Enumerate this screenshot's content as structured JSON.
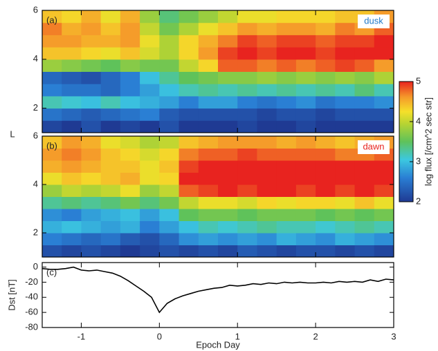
{
  "chart_data": [
    {
      "type": "heatmap",
      "panel_label": "(a)",
      "region": "dusk",
      "region_color": "#1f78c8",
      "ylabel": "L",
      "xbins": [
        -1.5,
        -1.25,
        -1,
        -0.75,
        -0.5,
        -0.25,
        0,
        0.25,
        0.5,
        0.75,
        1,
        1.25,
        1.5,
        1.75,
        2,
        2.25,
        2.5,
        2.75,
        3
      ],
      "ybins": [
        1,
        1.5,
        2,
        2.5,
        3,
        3.5,
        4,
        4.5,
        5,
        5.5,
        6
      ],
      "z": [
        [
          2.1,
          2.0,
          2.2,
          2.0,
          2.1,
          2.0,
          2.2,
          2.0,
          2.0,
          2.0,
          2.1,
          2.0,
          2.0,
          2.1,
          2.0,
          2.0,
          2.0,
          2.0
        ],
        [
          2.5,
          2.4,
          2.3,
          2.4,
          2.5,
          2.6,
          2.3,
          2.2,
          2.2,
          2.2,
          2.2,
          2.1,
          2.2,
          2.2,
          2.1,
          2.2,
          2.2,
          2.2
        ],
        [
          3.2,
          3.1,
          3.0,
          3.2,
          3.0,
          2.9,
          2.8,
          2.6,
          2.8,
          2.8,
          2.6,
          2.5,
          2.6,
          2.7,
          2.5,
          2.6,
          2.6,
          2.7
        ],
        [
          2.6,
          2.5,
          2.5,
          2.4,
          2.6,
          2.8,
          3.0,
          3.2,
          3.3,
          3.2,
          3.3,
          3.2,
          3.3,
          3.2,
          3.3,
          3.2,
          3.4,
          3.2
        ],
        [
          2.4,
          2.3,
          2.2,
          2.4,
          2.6,
          3.0,
          3.3,
          3.5,
          3.6,
          3.7,
          3.7,
          3.8,
          3.7,
          3.8,
          3.7,
          3.8,
          3.7,
          3.9
        ],
        [
          3.8,
          3.7,
          3.6,
          3.5,
          3.7,
          3.6,
          3.6,
          4.0,
          4.3,
          4.8,
          4.8,
          4.7,
          4.8,
          4.7,
          4.8,
          4.9,
          4.8,
          4.6
        ],
        [
          4.4,
          4.4,
          4.3,
          4.2,
          4.4,
          4.1,
          3.9,
          4.3,
          4.6,
          4.9,
          5.0,
          4.9,
          5.0,
          5.0,
          4.9,
          5.0,
          5.0,
          5.0
        ],
        [
          4.6,
          4.6,
          4.5,
          4.5,
          4.6,
          4.2,
          3.9,
          4.3,
          4.5,
          4.7,
          4.9,
          4.8,
          4.9,
          4.9,
          4.8,
          4.9,
          4.9,
          5.0
        ],
        [
          4.7,
          4.5,
          4.6,
          4.4,
          4.6,
          4.0,
          3.6,
          3.9,
          4.2,
          4.4,
          4.6,
          4.5,
          4.6,
          4.6,
          4.5,
          4.7,
          4.6,
          4.8
        ],
        [
          4.4,
          4.3,
          4.5,
          4.2,
          4.5,
          3.8,
          3.4,
          3.6,
          3.8,
          4.0,
          4.2,
          4.2,
          4.3,
          4.3,
          4.3,
          4.4,
          4.4,
          4.6
        ]
      ],
      "xlim": [
        -1.5,
        3
      ],
      "ylim": [
        1,
        6
      ],
      "yticks": [
        2,
        4,
        6
      ],
      "xticks": [
        -1,
        0,
        1,
        2,
        3
      ]
    },
    {
      "type": "heatmap",
      "panel_label": "(b)",
      "region": "dawn",
      "region_color": "#e8231f",
      "xbins": [
        -1.5,
        -1.25,
        -1,
        -0.75,
        -0.5,
        -0.25,
        0,
        0.25,
        0.5,
        0.75,
        1,
        1.25,
        1.5,
        1.75,
        2,
        2.25,
        2.5,
        2.75,
        3
      ],
      "ybins": [
        1,
        1.5,
        2,
        2.5,
        3,
        3.5,
        4,
        4.5,
        5,
        5.5,
        6
      ],
      "z": [
        [
          2.2,
          2.1,
          2.2,
          2.1,
          2.0,
          2.1,
          2.2,
          2.1,
          2.2,
          2.1,
          2.3,
          2.2,
          2.1,
          2.2,
          2.2,
          2.1,
          2.2,
          2.1
        ],
        [
          2.6,
          2.5,
          2.4,
          2.5,
          2.3,
          2.2,
          2.4,
          2.7,
          2.8,
          2.7,
          2.8,
          2.7,
          2.9,
          2.8,
          2.7,
          2.9,
          2.8,
          2.7
        ],
        [
          2.9,
          3.0,
          2.9,
          2.8,
          2.9,
          2.6,
          2.8,
          3.0,
          3.2,
          3.1,
          3.2,
          3.3,
          3.2,
          3.2,
          3.1,
          3.2,
          3.3,
          3.2
        ],
        [
          2.7,
          2.6,
          2.8,
          2.9,
          3.0,
          2.8,
          3.0,
          3.5,
          3.6,
          3.6,
          3.5,
          3.6,
          3.6,
          3.6,
          3.5,
          3.6,
          3.5,
          3.6
        ],
        [
          3.3,
          3.4,
          3.3,
          3.4,
          3.6,
          3.4,
          3.6,
          4.0,
          4.2,
          4.2,
          4.1,
          4.3,
          4.2,
          4.3,
          4.3,
          4.2,
          4.4,
          4.2
        ],
        [
          3.8,
          4.0,
          3.9,
          4.0,
          4.2,
          3.8,
          4.0,
          4.8,
          4.9,
          5.0,
          4.9,
          5.0,
          5.0,
          4.9,
          5.0,
          4.9,
          5.0,
          4.9
        ],
        [
          4.2,
          4.4,
          4.3,
          4.4,
          4.5,
          4.2,
          4.3,
          5.0,
          5.0,
          5.0,
          5.0,
          5.0,
          5.0,
          5.0,
          5.0,
          5.0,
          5.0,
          5.0
        ],
        [
          4.5,
          4.6,
          4.5,
          4.4,
          4.4,
          4.2,
          4.4,
          4.9,
          5.0,
          5.0,
          5.0,
          5.0,
          5.0,
          5.0,
          5.0,
          5.0,
          5.0,
          5.0
        ],
        [
          4.6,
          4.7,
          4.6,
          4.4,
          4.3,
          4.1,
          4.3,
          4.7,
          4.8,
          4.8,
          4.9,
          4.8,
          4.8,
          4.8,
          4.8,
          4.7,
          4.7,
          4.8
        ],
        [
          4.4,
          4.6,
          4.5,
          4.2,
          4.1,
          3.9,
          4.0,
          4.4,
          4.5,
          4.6,
          4.6,
          4.6,
          4.5,
          4.6,
          4.5,
          4.4,
          4.5,
          4.6
        ]
      ],
      "xlim": [
        -1.5,
        3
      ],
      "ylim": [
        1,
        6
      ],
      "yticks": [
        2,
        4,
        6
      ],
      "xticks": [
        -1,
        0,
        1,
        2,
        3
      ]
    },
    {
      "type": "line",
      "panel_label": "(c)",
      "ylabel": "Dst [nT]",
      "xlabel": "Epoch Day",
      "color": "#000000",
      "x": [
        -1.5,
        -1.4,
        -1.3,
        -1.2,
        -1.1,
        -1.0,
        -0.9,
        -0.8,
        -0.7,
        -0.6,
        -0.5,
        -0.4,
        -0.3,
        -0.2,
        -0.1,
        0,
        0.1,
        0.2,
        0.3,
        0.4,
        0.5,
        0.6,
        0.7,
        0.8,
        0.9,
        1.0,
        1.1,
        1.2,
        1.3,
        1.4,
        1.5,
        1.6,
        1.7,
        1.8,
        1.9,
        2.0,
        2.1,
        2.2,
        2.3,
        2.4,
        2.5,
        2.6,
        2.7,
        2.8,
        2.9,
        3.0
      ],
      "values": [
        -2,
        -3,
        -3,
        -2,
        0,
        -4,
        -5,
        -4,
        -6,
        -8,
        -12,
        -18,
        -25,
        -32,
        -40,
        -60,
        -48,
        -42,
        -38,
        -35,
        -32,
        -30,
        -28,
        -27,
        -24,
        -25,
        -24,
        -22,
        -23,
        -21,
        -22,
        -20,
        -21,
        -20,
        -21,
        -21,
        -20,
        -21,
        -19,
        -20,
        -19,
        -20,
        -17,
        -19,
        -16,
        -17
      ],
      "xlim": [
        -1.5,
        3
      ],
      "ylim": [
        -80,
        6
      ],
      "yticks": [
        0,
        -20,
        -40,
        -60,
        -80
      ],
      "xticks": [
        -1,
        0,
        1,
        2,
        3
      ]
    },
    {
      "type": "colorbar",
      "label": "log flux [/cm^2 sec str]",
      "zlim": [
        2,
        5
      ],
      "ticks": [
        2,
        3,
        4,
        5
      ]
    }
  ]
}
